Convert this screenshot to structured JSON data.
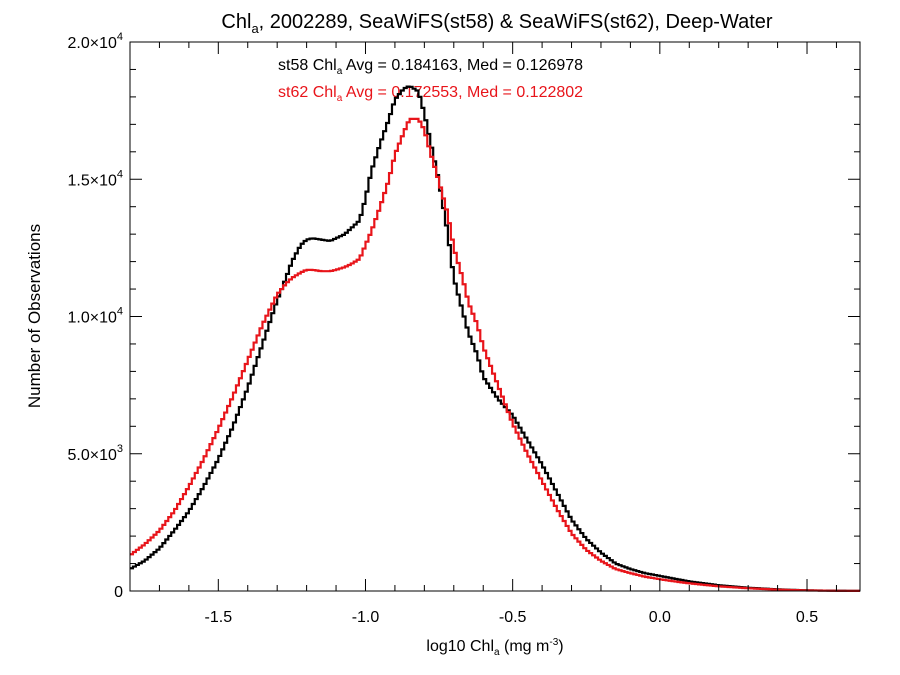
{
  "chart_data": {
    "type": "line",
    "title": {
      "prefix": "Chl",
      "sub": "a",
      "rest": ", 2002289, SeaWiFS(st58) & SeaWiFS(st62), Deep-Water"
    },
    "xlabel": {
      "prefix": "log10 Chl",
      "sub": "a",
      "mid": " (mg m",
      "sup": "-3",
      "suffix": ")"
    },
    "ylabel": "Number of Observations",
    "xlim": [
      -1.8,
      0.68
    ],
    "ylim": [
      0,
      20000
    ],
    "x_ticks": [
      {
        "value": -1.5,
        "label": "-1.5"
      },
      {
        "value": -1.0,
        "label": "-1.0"
      },
      {
        "value": -0.5,
        "label": "-0.5"
      },
      {
        "value": 0.0,
        "label": "0.0"
      },
      {
        "value": 0.5,
        "label": "0.5"
      }
    ],
    "y_ticks": [
      {
        "value": 0,
        "mant": "0",
        "exp": ""
      },
      {
        "value": 5000,
        "mant": "5.0×10",
        "exp": "3"
      },
      {
        "value": 10000,
        "mant": "1.0×10",
        "exp": "4"
      },
      {
        "value": 15000,
        "mant": "1.5×10",
        "exp": "4"
      },
      {
        "value": 20000,
        "mant": "2.0×10",
        "exp": "4"
      }
    ],
    "grid": false,
    "annotations": [
      {
        "series": "st58",
        "color": "#000000",
        "prefix": "st58 Chl",
        "sub": "a",
        "rest": " Avg = 0.184163, Med = 0.126978"
      },
      {
        "series": "st62",
        "color": "#e8141a",
        "prefix": "st62 Chl",
        "sub": "a",
        "rest": " Avg = 0.172553, Med = 0.122802"
      }
    ],
    "series": [
      {
        "name": "st58",
        "color": "#000000",
        "x": [
          -1.8,
          -1.75,
          -1.7,
          -1.65,
          -1.6,
          -1.55,
          -1.5,
          -1.45,
          -1.4,
          -1.35,
          -1.3,
          -1.27,
          -1.25,
          -1.22,
          -1.2,
          -1.18,
          -1.15,
          -1.12,
          -1.1,
          -1.07,
          -1.05,
          -1.02,
          -1.0,
          -0.98,
          -0.95,
          -0.92,
          -0.9,
          -0.87,
          -0.85,
          -0.82,
          -0.8,
          -0.78,
          -0.75,
          -0.72,
          -0.7,
          -0.67,
          -0.65,
          -0.62,
          -0.6,
          -0.55,
          -0.5,
          -0.45,
          -0.4,
          -0.35,
          -0.3,
          -0.25,
          -0.2,
          -0.15,
          -0.1,
          -0.05,
          0.0,
          0.05,
          0.1,
          0.2,
          0.3,
          0.4,
          0.5,
          0.6,
          0.68
        ],
        "y": [
          800,
          1100,
          1550,
          2200,
          2900,
          3800,
          4800,
          6000,
          7400,
          9000,
          10600,
          11400,
          12000,
          12600,
          12800,
          12850,
          12800,
          12750,
          12850,
          13000,
          13200,
          13500,
          14300,
          15300,
          16300,
          17200,
          17900,
          18300,
          18400,
          18200,
          17400,
          16400,
          14900,
          13000,
          11400,
          10200,
          9400,
          8600,
          7800,
          7000,
          6400,
          5500,
          4600,
          3600,
          2600,
          1900,
          1400,
          1000,
          800,
          650,
          550,
          450,
          350,
          210,
          120,
          60,
          25,
          10,
          5
        ]
      },
      {
        "name": "st62",
        "color": "#e8141a",
        "x": [
          -1.8,
          -1.75,
          -1.7,
          -1.65,
          -1.6,
          -1.55,
          -1.5,
          -1.45,
          -1.4,
          -1.35,
          -1.3,
          -1.27,
          -1.25,
          -1.22,
          -1.2,
          -1.18,
          -1.15,
          -1.12,
          -1.1,
          -1.07,
          -1.05,
          -1.02,
          -1.0,
          -0.98,
          -0.95,
          -0.92,
          -0.9,
          -0.87,
          -0.85,
          -0.82,
          -0.8,
          -0.78,
          -0.75,
          -0.72,
          -0.7,
          -0.67,
          -0.65,
          -0.62,
          -0.6,
          -0.55,
          -0.5,
          -0.45,
          -0.4,
          -0.35,
          -0.3,
          -0.25,
          -0.2,
          -0.15,
          -0.1,
          -0.05,
          0.0,
          0.05,
          0.1,
          0.2,
          0.3,
          0.4,
          0.5,
          0.6,
          0.68
        ],
        "y": [
          1300,
          1700,
          2200,
          2900,
          3800,
          4800,
          5900,
          7100,
          8400,
          9700,
          10800,
          11200,
          11400,
          11600,
          11700,
          11700,
          11650,
          11650,
          11700,
          11800,
          11900,
          12100,
          12600,
          13100,
          14000,
          15000,
          15900,
          16700,
          17200,
          17200,
          16800,
          16000,
          14900,
          13700,
          12500,
          11400,
          10500,
          9700,
          8900,
          7500,
          6100,
          5000,
          4000,
          3000,
          2100,
          1500,
          1100,
          800,
          650,
          520,
          430,
          350,
          280,
          170,
          100,
          50,
          20,
          8,
          4
        ]
      }
    ]
  }
}
